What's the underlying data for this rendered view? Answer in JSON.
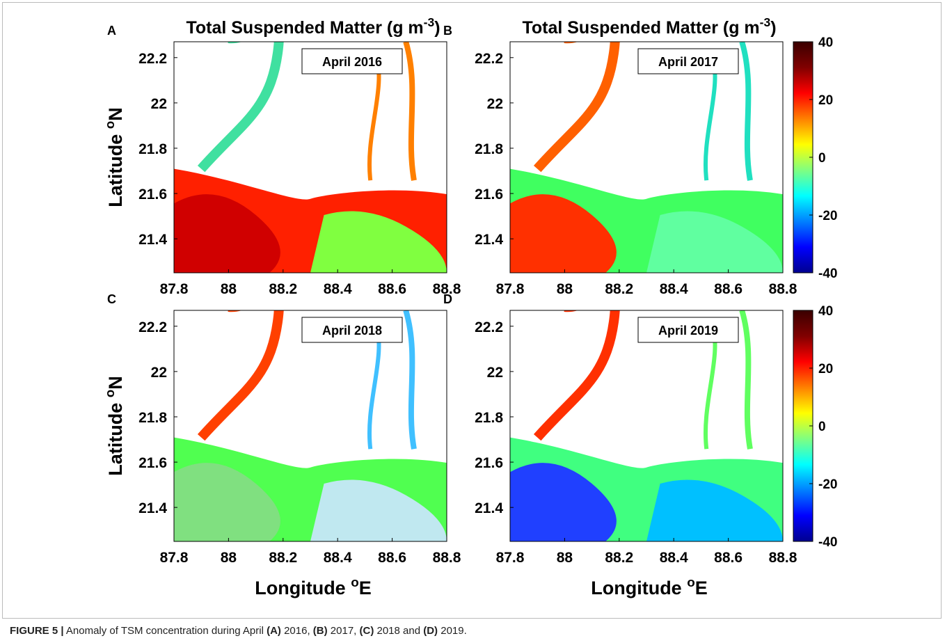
{
  "caption": [
    {
      "text": "FIGURE 5 |",
      "bold": true
    },
    {
      "text": " Anomaly of TSM concentration during April ",
      "bold": false
    },
    {
      "text": "(A)",
      "bold": true
    },
    {
      "text": " 2016, ",
      "bold": false
    },
    {
      "text": "(B)",
      "bold": true
    },
    {
      "text": " 2017, ",
      "bold": false
    },
    {
      "text": "(C)",
      "bold": true
    },
    {
      "text": " 2018 and ",
      "bold": false
    },
    {
      "text": "(D)",
      "bold": true
    },
    {
      "text": " 2019.",
      "bold": false
    }
  ],
  "chart_data": [
    {
      "type": "map",
      "label": "A",
      "title": {
        "text": "Total Suspended Matter (g m",
        "sup": "-3",
        "end": ")"
      },
      "annotation": "April 2016",
      "ylabel": {
        "text": "Latitude ",
        "sup": "o",
        "end": "N"
      },
      "xlim": [
        87.8,
        88.8
      ],
      "xticks": [
        87.8,
        88,
        88.2,
        88.4,
        88.6,
        88.8
      ],
      "ylim": [
        21.25,
        22.27
      ],
      "yticks": [
        21.4,
        21.6,
        21.8,
        22,
        22.2
      ]
    },
    {
      "type": "map",
      "label": "B",
      "title": {
        "text": "Total Suspended Matter (g m",
        "sup": "-3",
        "end": ")"
      },
      "annotation": "April 2017",
      "xlim": [
        87.8,
        88.8
      ],
      "xticks": [
        87.8,
        88,
        88.2,
        88.4,
        88.6,
        88.8
      ],
      "ylim": [
        21.25,
        22.27
      ],
      "yticks": [
        21.4,
        21.6,
        21.8,
        22,
        22.2
      ],
      "colorbar": {
        "ylim": [
          -40,
          40
        ],
        "yticks": [
          -40,
          -20,
          0,
          20,
          40
        ],
        "colors": [
          "#00008f",
          "#0000ff",
          "#0080ff",
          "#00ffff",
          "#80ff80",
          "#ffff00",
          "#ff8000",
          "#ff0000",
          "#800000",
          "#3a0000"
        ]
      }
    },
    {
      "type": "map",
      "label": "C",
      "annotation": "April 2018",
      "ylabel": {
        "text": "Latitude ",
        "sup": "o",
        "end": "N"
      },
      "xlabel": {
        "text": "Longitude ",
        "sup": "o",
        "end": "E"
      },
      "xlim": [
        87.8,
        88.8
      ],
      "xticks": [
        87.8,
        88,
        88.2,
        88.4,
        88.6,
        88.8
      ],
      "ylim": [
        21.25,
        22.27
      ],
      "yticks": [
        21.4,
        21.6,
        21.8,
        22,
        22.2
      ]
    },
    {
      "type": "map",
      "label": "D",
      "annotation": "April 2019",
      "xlabel": {
        "text": "Longitude ",
        "sup": "o",
        "end": "E"
      },
      "xlim": [
        87.8,
        88.8
      ],
      "xticks": [
        87.8,
        88,
        88.2,
        88.4,
        88.6,
        88.8
      ],
      "ylim": [
        21.25,
        22.27
      ],
      "yticks": [
        21.4,
        21.6,
        21.8,
        22,
        22.2
      ],
      "colorbar": {
        "ylim": [
          -40,
          40
        ],
        "yticks": [
          -40,
          -20,
          0,
          20,
          40
        ],
        "colors": [
          "#00008f",
          "#0000ff",
          "#0080ff",
          "#00ffff",
          "#80ff80",
          "#ffff00",
          "#ff8000",
          "#ff0000",
          "#800000",
          "#3a0000"
        ]
      }
    }
  ]
}
